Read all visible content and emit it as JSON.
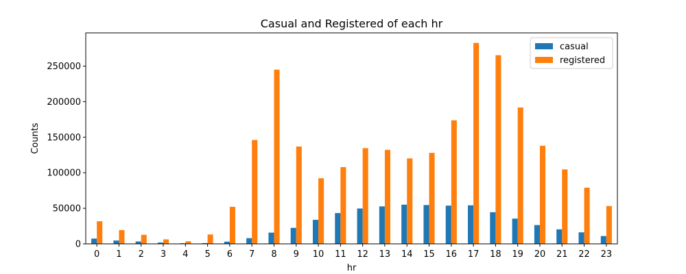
{
  "chart_data": {
    "type": "bar",
    "title": "Casual and Registered of each hr",
    "xlabel": "hr",
    "ylabel": "Counts",
    "categories": [
      "0",
      "1",
      "2",
      "3",
      "4",
      "5",
      "6",
      "7",
      "8",
      "9",
      "10",
      "11",
      "12",
      "13",
      "14",
      "15",
      "16",
      "17",
      "18",
      "19",
      "20",
      "21",
      "22",
      "23"
    ],
    "series": [
      {
        "name": "casual",
        "color": "#1f77b4",
        "values": [
          7400,
          4700,
          3400,
          1900,
          900,
          1100,
          3100,
          8000,
          15800,
          22500,
          33800,
          43300,
          49700,
          52700,
          55100,
          54600,
          53800,
          54200,
          44500,
          35500,
          26400,
          20400,
          16200,
          11000
        ]
      },
      {
        "name": "registered",
        "color": "#ff7f0e",
        "values": [
          31800,
          19400,
          12700,
          6300,
          3600,
          13200,
          52100,
          146100,
          245000,
          136900,
          92300,
          108000,
          134600,
          132200,
          120200,
          128000,
          173800,
          282600,
          265300,
          191800,
          138000,
          104700,
          79000,
          53200
        ]
      }
    ],
    "yticks": [
      0,
      50000,
      100000,
      150000,
      200000,
      250000
    ],
    "ylim": [
      0,
      296730
    ],
    "grid": false,
    "legend_position": "top-right"
  }
}
